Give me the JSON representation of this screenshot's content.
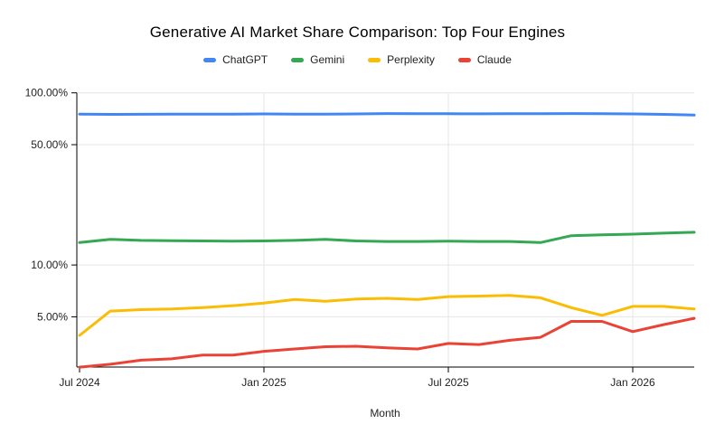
{
  "chart_data": {
    "type": "line",
    "title": "Generative AI Market Share Comparison: Top Four Engines",
    "xlabel": "Month",
    "ylabel": "",
    "y_scale": "log",
    "grid": true,
    "legend_position": "top",
    "ylim_percent": [
      2.55,
      100
    ],
    "y_ticks": [
      {
        "label": "100.00%",
        "value": 100
      },
      {
        "label": "50.00%",
        "value": 50
      },
      {
        "label": "10.00%",
        "value": 10
      },
      {
        "label": "5.00%",
        "value": 5
      }
    ],
    "x_tick_labels": [
      "Jul 2024",
      "Jan 2025",
      "Jul 2025",
      "Jan 2026"
    ],
    "x_tick_indices": [
      0,
      6,
      12,
      18
    ],
    "categories": [
      "Jul 2024",
      "Aug 2024",
      "Sep 2024",
      "Oct 2024",
      "Nov 2024",
      "Dec 2024",
      "Jan 2025",
      "Feb 2025",
      "Mar 2025",
      "Apr 2025",
      "May 2025",
      "Jun 2025",
      "Jul 2025",
      "Aug 2025",
      "Sep 2025",
      "Oct 2025",
      "Nov 2025",
      "Dec 2025",
      "Jan 2026",
      "Feb 2026",
      "Mar 2026"
    ],
    "series": [
      {
        "name": "ChatGPT",
        "color": "#4285F4",
        "values": [
          75.3,
          75.0,
          75.1,
          75.2,
          75.2,
          75.3,
          75.4,
          75.3,
          75.2,
          75.4,
          75.8,
          75.6,
          75.6,
          75.5,
          75.6,
          75.7,
          75.8,
          75.6,
          75.4,
          75.0,
          74.3
        ]
      },
      {
        "name": "Gemini",
        "color": "#34A853",
        "values": [
          13.5,
          14.1,
          13.9,
          13.85,
          13.8,
          13.75,
          13.8,
          13.9,
          14.1,
          13.8,
          13.7,
          13.7,
          13.75,
          13.7,
          13.7,
          13.5,
          14.8,
          14.95,
          15.1,
          15.3,
          15.5
        ]
      },
      {
        "name": "Perplexity",
        "color": "#FBBC04",
        "values": [
          3.9,
          5.4,
          5.5,
          5.55,
          5.65,
          5.8,
          6.0,
          6.3,
          6.15,
          6.35,
          6.4,
          6.3,
          6.55,
          6.6,
          6.65,
          6.45,
          5.65,
          5.1,
          5.75,
          5.75,
          5.55
        ]
      },
      {
        "name": "Claude",
        "color": "#EA4335",
        "values": [
          2.55,
          2.65,
          2.8,
          2.85,
          3.0,
          3.0,
          3.15,
          3.25,
          3.35,
          3.37,
          3.3,
          3.25,
          3.5,
          3.45,
          3.65,
          3.8,
          4.7,
          4.7,
          4.1,
          4.5,
          4.9
        ]
      }
    ],
    "axis_color": "#000000",
    "gridline_color": "#e6e6e6"
  }
}
